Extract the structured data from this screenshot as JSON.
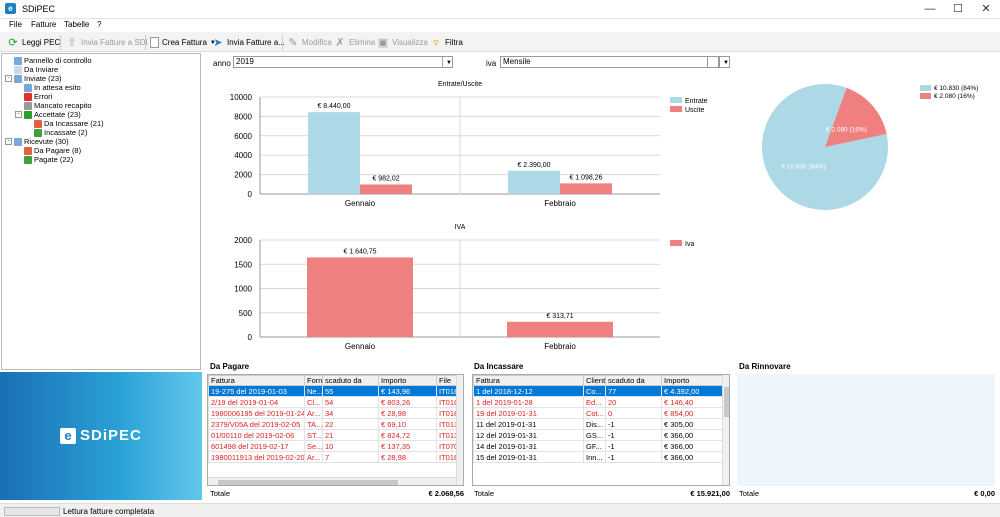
{
  "window": {
    "title": "SDiPEC",
    "app_icon": "e"
  },
  "menu": [
    "File",
    "Fatture",
    "Tabelle",
    "?"
  ],
  "toolbar": {
    "leggi_pec": "Leggi PEC",
    "invia_fatture_sdi": "Invia Fatture a SDI",
    "crea_fattura": "Crea Fattura",
    "invia_fatture_a": "Invia Fatture a...",
    "modifica": "Modifica",
    "elimina": "Elimina",
    "visualizza": "Visualizza",
    "filtra": "Filtra"
  },
  "tree": [
    {
      "label": "Pannello di controllo",
      "level": 0,
      "icon": "control-panel-icon",
      "color": "#7aa7d8"
    },
    {
      "label": "Da Inviare",
      "level": 0,
      "icon": "document-icon",
      "color": "#c9d8ea"
    },
    {
      "label": "Inviate (23)",
      "level": 0,
      "icon": "send-icon",
      "color": "#7aa7d8",
      "expander": "-"
    },
    {
      "label": "In attesa esito",
      "level": 1,
      "icon": "clock-icon",
      "color": "#7aa7d8"
    },
    {
      "label": "Errori",
      "level": 1,
      "icon": "error-icon",
      "color": "#e03030"
    },
    {
      "label": "Mancato recapito",
      "level": 1,
      "icon": "check-grey-icon",
      "color": "#999999"
    },
    {
      "label": "Accettate (23)",
      "level": 1,
      "icon": "check-icon",
      "color": "#2aa02a",
      "expander": "-"
    },
    {
      "label": "Da Incassare (21)",
      "level": 2,
      "icon": "money-red-icon",
      "color": "#e06040"
    },
    {
      "label": "Incassate (2)",
      "level": 2,
      "icon": "money-green-icon",
      "color": "#40a040"
    },
    {
      "label": "Ricevute (30)",
      "level": 0,
      "icon": "receive-icon",
      "color": "#7aa7d8",
      "expander": "-"
    },
    {
      "label": "Da Pagare (8)",
      "level": 1,
      "icon": "money-red-icon",
      "color": "#e06040"
    },
    {
      "label": "Pagate (22)",
      "level": 1,
      "icon": "money-green-icon",
      "color": "#40a040"
    }
  ],
  "logo": {
    "mark": "e",
    "text": "SDiPEC"
  },
  "filters": {
    "anno_label": "anno",
    "anno_value": "2019",
    "iva_label": "iva",
    "iva_value": "Mensile"
  },
  "chart_data": [
    {
      "type": "bar",
      "title": "Entrate/Uscite",
      "categories": [
        "Gennaio",
        "Febbraio"
      ],
      "series": [
        {
          "name": "Entrate",
          "color": "#add8e6",
          "values": [
            8440.0,
            2390.0
          ],
          "labels": [
            "€ 8.440,00",
            "€ 2.390,00"
          ]
        },
        {
          "name": "Uscite",
          "color": "#f08080",
          "values": [
            982.02,
            1098.26
          ],
          "labels": [
            "€ 982,02",
            "€ 1.098,26"
          ]
        }
      ],
      "ylim": [
        0,
        10000
      ],
      "yticks": [
        "0",
        "2000",
        "4000",
        "6000",
        "8000",
        "10000"
      ],
      "grid": true,
      "legend": "top-right"
    },
    {
      "type": "bar",
      "title": "IVA",
      "categories": [
        "Gennaio",
        "Febbraio"
      ],
      "series": [
        {
          "name": "Iva",
          "color": "#f08080",
          "values": [
            1640.75,
            313.71
          ],
          "labels": [
            "€ 1.640,75",
            "€ 313,71"
          ]
        }
      ],
      "ylim": [
        0,
        2000
      ],
      "yticks": [
        "0",
        "500",
        "1000",
        "1500",
        "2000"
      ],
      "grid": true,
      "legend": "top-right"
    },
    {
      "type": "pie",
      "slices": [
        {
          "label": "€ 10.830 (84%)",
          "value": 10830,
          "color": "#add8e6"
        },
        {
          "label": "€ 2.080 (16%)",
          "value": 2080,
          "color": "#f08080"
        }
      ],
      "legend": "top-right"
    }
  ],
  "da_pagare": {
    "title": "Da Pagare",
    "columns": [
      "Fattura",
      "Forni",
      "scaduto da",
      "Importo",
      "File"
    ],
    "rows": [
      {
        "fattura": "19-275 del 2019-01-03",
        "forni": "Ne...",
        "scaduto": "55",
        "importo": "€ 143,96",
        "file": "IT018",
        "style": "sel"
      },
      {
        "fattura": "2/19 del 2019-01-04",
        "forni": "Cl...",
        "scaduto": "54",
        "importo": "€ 803,26",
        "file": "IT018",
        "style": "red"
      },
      {
        "fattura": "1980006195 del 2019-01-24",
        "forni": "Ar...",
        "scaduto": "34",
        "importo": "€ 28,98",
        "file": "IT018",
        "style": "red"
      },
      {
        "fattura": "2379/V05A del 2019-02-05",
        "forni": "TA...",
        "scaduto": "22",
        "importo": "€ 69,10",
        "file": "IT013",
        "style": "red"
      },
      {
        "fattura": "01/00110 del 2019-02-06",
        "forni": "ST...",
        "scaduto": "21",
        "importo": "€ 824,72",
        "file": "IT013",
        "style": "red"
      },
      {
        "fattura": "601498 del 2019-02-17",
        "forni": "Se...",
        "scaduto": "10",
        "importo": "€ 137,35",
        "file": "IT070",
        "style": "red"
      },
      {
        "fattura": "1980011913 del 2019-02-20",
        "forni": "Ar...",
        "scaduto": "7",
        "importo": "€ 28,98",
        "file": "IT018",
        "style": "red"
      }
    ],
    "total_label": "Totale",
    "total_value": "€ 2.068,56"
  },
  "da_incassare": {
    "title": "Da Incassare",
    "columns": [
      "Fattura",
      "Client",
      "scaduto da",
      "Importo"
    ],
    "rows": [
      {
        "fattura": "1 del 2018-12-12",
        "client": "Co...",
        "scaduto": "77",
        "importo": "€ 4.392,00",
        "style": "sel"
      },
      {
        "fattura": "1 del 2019-01-28",
        "client": "Ed...",
        "scaduto": "20",
        "importo": "€ 146,40",
        "style": "red"
      },
      {
        "fattura": "19 del 2019-01-31",
        "client": "Cot...",
        "scaduto": "0",
        "importo": "€ 854,00",
        "style": "red"
      },
      {
        "fattura": "11 del 2019-01-31",
        "client": "Dis...",
        "scaduto": "-1",
        "importo": "€ 305,00",
        "style": ""
      },
      {
        "fattura": "12 del 2019-01-31",
        "client": "GS...",
        "scaduto": "-1",
        "importo": "€ 366,00",
        "style": ""
      },
      {
        "fattura": "14 del 2019-01-31",
        "client": "GF...",
        "scaduto": "-1",
        "importo": "€ 366,00",
        "style": ""
      },
      {
        "fattura": "15 del 2019-01-31",
        "client": "Inn...",
        "scaduto": "-1",
        "importo": "€ 366,00",
        "style": ""
      }
    ],
    "total_label": "Totale",
    "total_value": "€ 15.921,00"
  },
  "da_rinnovare": {
    "title": "Da Rinnovare",
    "total_label": "Totale",
    "total_value": "€ 0,00"
  },
  "status": {
    "text": "Lettura fatture completata"
  }
}
